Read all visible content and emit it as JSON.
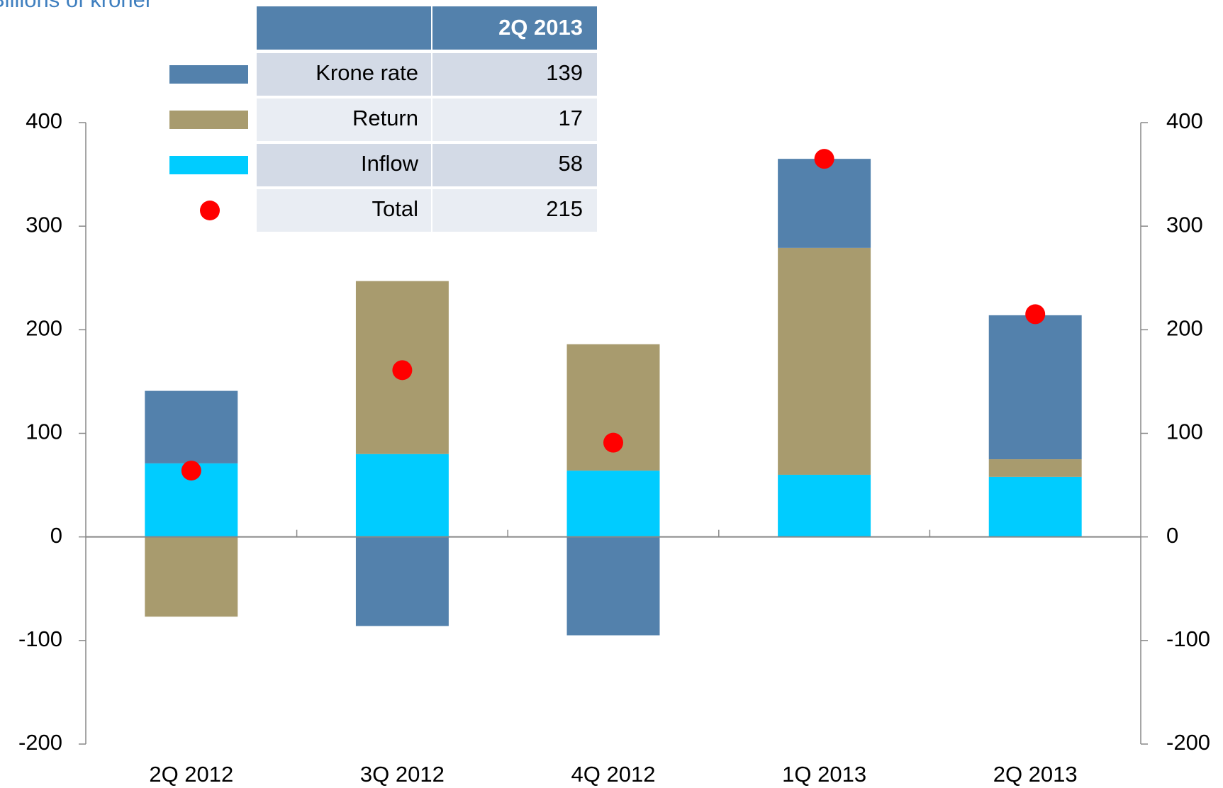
{
  "chart_data": {
    "type": "stacked_bar",
    "title": "Billions of kroner",
    "categories": [
      "2Q 2012",
      "3Q 2012",
      "4Q 2012",
      "1Q 2013",
      "2Q 2013"
    ],
    "series": [
      {
        "name": "Krone rate",
        "color": "#5381ac",
        "values": [
          70,
          -86,
          -95,
          86,
          139
        ]
      },
      {
        "name": "Return",
        "color": "#a89b6e",
        "values": [
          -77,
          167,
          122,
          219,
          17
        ]
      },
      {
        "name": "Inflow",
        "color": "#00ccff",
        "values": [
          71,
          80,
          64,
          60,
          58
        ]
      }
    ],
    "total": {
      "name": "Total",
      "color": "#ff0000",
      "values": [
        64,
        161,
        91,
        365,
        215
      ]
    },
    "table": {
      "header": "2Q 2013",
      "values": [
        139,
        17,
        58,
        215
      ]
    },
    "ylim": [
      -200,
      400
    ],
    "yticks": [
      -200,
      -100,
      0,
      100,
      200,
      300,
      400
    ],
    "y2lim": [
      -200,
      400
    ],
    "y2ticks": [
      -200,
      -100,
      0,
      100,
      200,
      300,
      400
    ]
  }
}
